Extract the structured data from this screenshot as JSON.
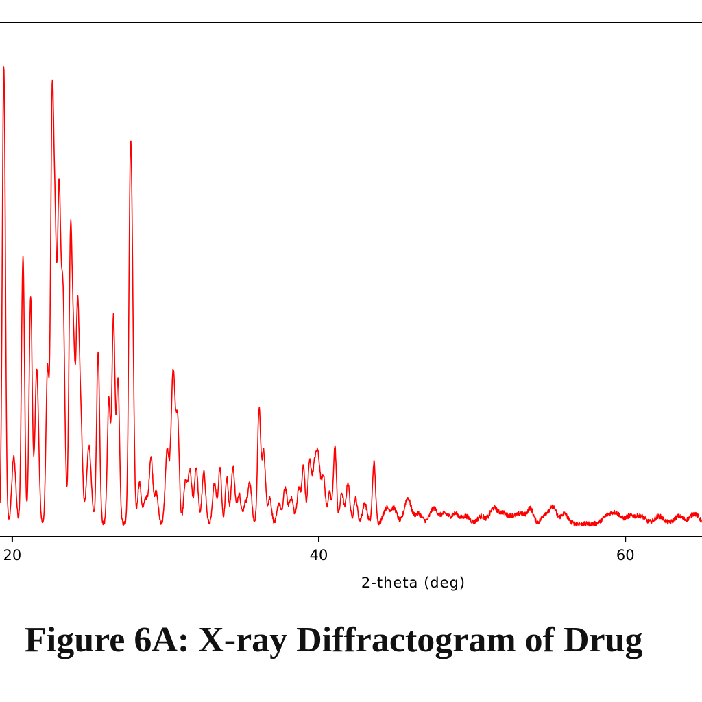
{
  "figure": {
    "caption": "Figure 6A: X-ray Diffractogram of Drug"
  },
  "colors": {
    "trace": "#ff0000",
    "axis": "#000000"
  },
  "chart_data": {
    "type": "line",
    "title": "",
    "xlabel": "2-theta (deg)",
    "ylabel": "",
    "xlim": [
      19.2,
      65.0
    ],
    "ylim": [
      0,
      100
    ],
    "xticks": [
      20,
      40,
      60
    ],
    "grid": false,
    "series": [
      {
        "name": "Drug",
        "baseline": 2.5,
        "peaks": [
          [
            19.45,
            89,
            0.1
          ],
          [
            20.1,
            13,
            0.13
          ],
          [
            20.7,
            52,
            0.1
          ],
          [
            21.2,
            44,
            0.1
          ],
          [
            21.6,
            30,
            0.12
          ],
          [
            22.3,
            30,
            0.1
          ],
          [
            22.6,
            78,
            0.1
          ],
          [
            22.8,
            50,
            0.1
          ],
          [
            23.05,
            60,
            0.1
          ],
          [
            23.3,
            45,
            0.12
          ],
          [
            23.8,
            54,
            0.1
          ],
          [
            24.0,
            30,
            0.1
          ],
          [
            24.25,
            37,
            0.1
          ],
          [
            24.45,
            22,
            0.12
          ],
          [
            25.0,
            15,
            0.15
          ],
          [
            25.6,
            33,
            0.1
          ],
          [
            26.3,
            24,
            0.1
          ],
          [
            26.6,
            40,
            0.1
          ],
          [
            26.9,
            28,
            0.1
          ],
          [
            27.7,
            63,
            0.1
          ],
          [
            27.85,
            30,
            0.1
          ],
          [
            28.3,
            8,
            0.12
          ],
          [
            28.7,
            5,
            0.12
          ],
          [
            29.05,
            13,
            0.12
          ],
          [
            29.4,
            6,
            0.12
          ],
          [
            30.1,
            14,
            0.12
          ],
          [
            30.5,
            30,
            0.14
          ],
          [
            30.8,
            18,
            0.1
          ],
          [
            31.3,
            8,
            0.12
          ],
          [
            31.6,
            10,
            0.12
          ],
          [
            32.0,
            11,
            0.12
          ],
          [
            32.5,
            10,
            0.12
          ],
          [
            33.2,
            8,
            0.12
          ],
          [
            33.55,
            11,
            0.1
          ],
          [
            34.0,
            9,
            0.1
          ],
          [
            34.4,
            11,
            0.12
          ],
          [
            34.8,
            6,
            0.12
          ],
          [
            35.2,
            4,
            0.12
          ],
          [
            35.5,
            8,
            0.12
          ],
          [
            36.1,
            22,
            0.1
          ],
          [
            36.4,
            14,
            0.12
          ],
          [
            36.8,
            5,
            0.12
          ],
          [
            37.4,
            4,
            0.12
          ],
          [
            37.8,
            7,
            0.12
          ],
          [
            38.2,
            5,
            0.15
          ],
          [
            38.7,
            7,
            0.12
          ],
          [
            39.0,
            11,
            0.1
          ],
          [
            39.4,
            12,
            0.12
          ],
          [
            39.7,
            9,
            0.12
          ],
          [
            39.95,
            13,
            0.14
          ],
          [
            40.3,
            9,
            0.12
          ],
          [
            40.7,
            6,
            0.12
          ],
          [
            41.05,
            15,
            0.1
          ],
          [
            41.5,
            6,
            0.12
          ],
          [
            41.9,
            8,
            0.12
          ],
          [
            42.4,
            5,
            0.12
          ],
          [
            43.0,
            4,
            0.15
          ],
          [
            43.6,
            12,
            0.1
          ],
          [
            44.4,
            3,
            0.2
          ],
          [
            44.9,
            3,
            0.2
          ],
          [
            45.8,
            5,
            0.22
          ],
          [
            46.5,
            2,
            0.25
          ],
          [
            47.5,
            3,
            0.25
          ],
          [
            48.2,
            2,
            0.25
          ],
          [
            48.9,
            2,
            0.25
          ],
          [
            49.6,
            1.5,
            0.25
          ],
          [
            50.6,
            1.5,
            0.25
          ],
          [
            51.4,
            3,
            0.25
          ],
          [
            52.0,
            2,
            0.25
          ],
          [
            52.6,
            1.5,
            0.25
          ],
          [
            53.2,
            2,
            0.25
          ],
          [
            53.8,
            3,
            0.2
          ],
          [
            54.8,
            2,
            0.25
          ],
          [
            55.3,
            3,
            0.2
          ],
          [
            56.0,
            2,
            0.25
          ],
          [
            58.8,
            1.5,
            0.3
          ],
          [
            59.4,
            2,
            0.3
          ],
          [
            60.3,
            1.5,
            0.3
          ],
          [
            61.0,
            1.5,
            0.3
          ],
          [
            62.2,
            1.5,
            0.3
          ],
          [
            63.5,
            1.5,
            0.3
          ],
          [
            64.5,
            2,
            0.3
          ]
        ]
      }
    ]
  }
}
